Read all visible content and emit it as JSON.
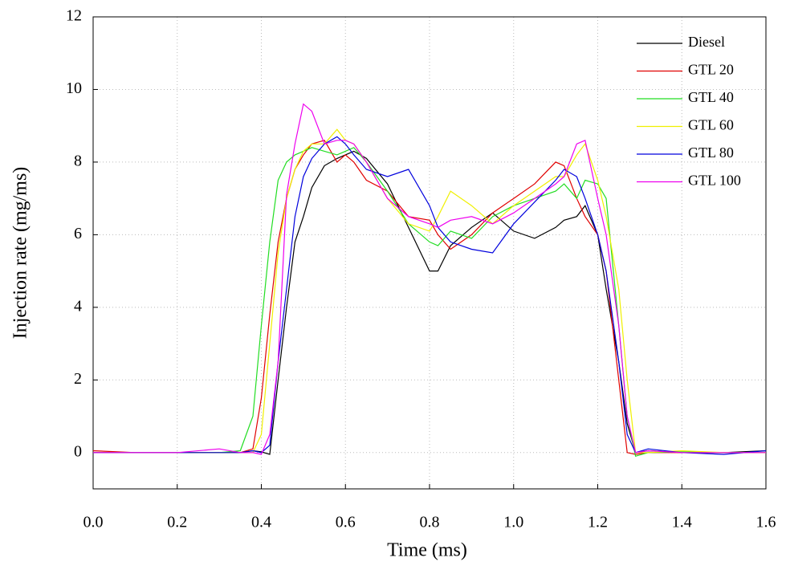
{
  "chart_data": {
    "type": "line",
    "x_label": "Time (ms)",
    "y_label": "Injection rate (mg/ms)",
    "x": [
      0,
      0.1,
      0.2,
      0.3,
      0.35,
      0.38,
      0.4,
      0.42,
      0.44,
      0.46,
      0.48,
      0.5,
      0.52,
      0.55,
      0.58,
      0.6,
      0.62,
      0.65,
      0.7,
      0.75,
      0.8,
      0.82,
      0.85,
      0.9,
      0.95,
      1.0,
      1.05,
      1.1,
      1.12,
      1.15,
      1.17,
      1.2,
      1.22,
      1.25,
      1.27,
      1.29,
      1.32,
      1.4,
      1.5,
      1.6
    ],
    "series": [
      {
        "name": "Diesel",
        "color": "#000000",
        "values": [
          0,
          0,
          0,
          0,
          0,
          0.05,
          0.02,
          -0.05,
          2,
          4,
          5.8,
          6.5,
          7.3,
          7.9,
          8.1,
          8.2,
          8.3,
          8.1,
          7.4,
          6.2,
          5.0,
          5.0,
          5.7,
          6.2,
          6.6,
          6.1,
          5.9,
          6.2,
          6.4,
          6.5,
          6.8,
          6.0,
          4.5,
          2.5,
          0.8,
          0,
          0.05,
          0,
          0,
          0.05
        ]
      },
      {
        "name": "GTL 20",
        "color": "#e00000",
        "values": [
          0.05,
          0,
          0,
          0,
          0,
          0.1,
          1.5,
          3.8,
          5.8,
          7.0,
          7.8,
          8.2,
          8.5,
          8.6,
          8.0,
          8.2,
          8.0,
          7.5,
          7.2,
          6.5,
          6.4,
          6.0,
          5.6,
          6.0,
          6.6,
          7.0,
          7.4,
          8.0,
          7.9,
          7.0,
          6.5,
          6.0,
          5.0,
          2.0,
          0,
          -0.05,
          0,
          0,
          0,
          0
        ]
      },
      {
        "name": "GTL 40",
        "color": "#22dd22",
        "values": [
          0,
          0,
          0,
          0,
          0.05,
          1.0,
          3.5,
          5.8,
          7.5,
          8.0,
          8.2,
          8.3,
          8.4,
          8.3,
          8.2,
          8.3,
          8.4,
          8.0,
          7.2,
          6.3,
          5.8,
          5.7,
          6.1,
          5.9,
          6.5,
          6.8,
          7.0,
          7.2,
          7.4,
          7.0,
          7.5,
          7.4,
          7.0,
          3.5,
          1.0,
          -0.1,
          0,
          0.02,
          0,
          0
        ]
      },
      {
        "name": "GTL 60",
        "color": "#f0f000",
        "values": [
          0,
          0,
          0,
          0,
          0,
          0,
          0.5,
          3,
          5.5,
          7.0,
          7.8,
          8.3,
          8.5,
          8.5,
          8.9,
          8.6,
          8.5,
          8.0,
          7.0,
          6.3,
          6.1,
          6.5,
          7.2,
          6.8,
          6.3,
          6.8,
          7.2,
          7.6,
          7.6,
          8.2,
          8.5,
          7.5,
          6.5,
          4.5,
          2.0,
          0,
          0,
          0.05,
          0,
          0
        ]
      },
      {
        "name": "GTL 80",
        "color": "#0000dd",
        "values": [
          0,
          0,
          0,
          0,
          0,
          0.05,
          0,
          0.2,
          2.5,
          4.5,
          6.5,
          7.6,
          8.1,
          8.5,
          8.7,
          8.5,
          8.2,
          7.8,
          7.6,
          7.8,
          6.8,
          6.2,
          5.8,
          5.6,
          5.5,
          6.3,
          6.9,
          7.5,
          7.8,
          7.6,
          7.0,
          6.0,
          5.0,
          2.5,
          0.5,
          0,
          0.1,
          0,
          -0.05,
          0.05
        ]
      },
      {
        "name": "GTL 100",
        "color": "#ee00ee",
        "values": [
          0,
          0,
          0,
          0.1,
          0,
          0,
          -0.05,
          0.5,
          2.5,
          7.1,
          8.5,
          9.6,
          9.4,
          8.5,
          8.6,
          8.6,
          8.5,
          8.0,
          7.0,
          6.5,
          6.3,
          6.2,
          6.4,
          6.5,
          6.3,
          6.6,
          7.0,
          7.4,
          7.6,
          8.5,
          8.6,
          7.0,
          6.0,
          3.5,
          1.0,
          0,
          0.05,
          0,
          0,
          0
        ]
      }
    ],
    "xlim": [
      0,
      1.6
    ],
    "xticks": [
      {
        "value": 0,
        "label": "0.0"
      },
      {
        "value": 0.2,
        "label": "0.2"
      },
      {
        "value": 0.4,
        "label": "0.4"
      },
      {
        "value": 0.6,
        "label": "0.6"
      },
      {
        "value": 0.8,
        "label": "0.8"
      },
      {
        "value": 1,
        "label": "1.0"
      },
      {
        "value": 1.2,
        "label": "1.2"
      },
      {
        "value": 1.4,
        "label": "1.4"
      },
      {
        "value": 1.6,
        "label": "1.6"
      }
    ],
    "ylim": [
      -1,
      12
    ],
    "yticks": [
      0,
      2,
      4,
      6,
      8,
      10,
      12
    ],
    "grid": true,
    "legend": "top-right"
  }
}
